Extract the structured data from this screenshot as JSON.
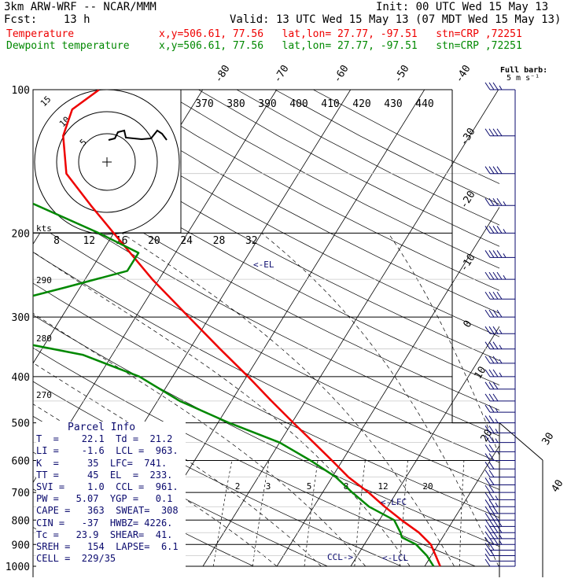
{
  "header": {
    "model": "3km ARW-WRF -- NCAR/MMM",
    "init": "Init: 00 UTC Wed 15 May 13",
    "fcst": "Fcst:    13 h",
    "valid": "Valid: 13 UTC Wed 15 May 13 (07 MDT Wed 15 May 13)",
    "temp_label": "Temperature",
    "temp_loc": "x,y=506.61, 77.56   lat,lon= 27.77, -97.51   stn=CRP ,72251",
    "dew_label": "Dewpoint temperature",
    "dew_loc": "x,y=506.61, 77.56   lat,lon= 27.77, -97.51   stn=CRP ,72251"
  },
  "colors": {
    "temperature": "#ee0000",
    "dewpoint": "#008800",
    "annot": "#0a0a6e",
    "grid": "#000000"
  },
  "barb_legend": {
    "line1": "Full barb:",
    "line2": "5 m s⁻¹"
  },
  "hodograph": {
    "rings": [
      "5",
      "10",
      "15"
    ],
    "units": "kts"
  },
  "parcel_info": {
    "title": "Parcel Info",
    "rows": [
      "T  =    22.1  Td =  21.2",
      "LI =    -1.6  LCL =  963.",
      "K  =     35  LFC=  741.",
      "TT =     45  EL  =  233.",
      "SVI =    1.0  CCL =  961.",
      "PW =   5.07  YGP =   0.1",
      "CAPE =   363  SWEAT=  308",
      "CIN =   -37  HWBZ= 4226.",
      "Tc =   23.9  SHEAR=  41.",
      "SREH =   154  LAPSE=  6.1",
      "CELL =  229/35"
    ]
  },
  "chart_data": {
    "type": "line",
    "title": "",
    "xlabel": "",
    "ylabel": "",
    "pressure_levels": [
      100,
      200,
      300,
      400,
      500,
      600,
      700,
      800,
      900,
      1000
    ],
    "theta_e_labels": [
      "370",
      "380",
      "390",
      "400",
      "410",
      "420",
      "430",
      "440"
    ],
    "mixing_ratio_labels": [
      "2",
      "3",
      "5",
      "8",
      "12",
      "20"
    ],
    "isotherm_labels": [
      "-80",
      "-70",
      "-60",
      "-50",
      "-40",
      "-30",
      "-20",
      "-10",
      "0",
      "10",
      "20",
      "30",
      "40"
    ],
    "temp_scale_labels": [
      "8",
      "12",
      "16",
      "20",
      "24",
      "28",
      "32"
    ],
    "dry_adiabat_labels": [
      "290",
      "280",
      "270"
    ],
    "level_markers": {
      "el": "<-EL",
      "lfc": "<-LFC",
      "lcl": "<-LCL",
      "ccl": "CCL->"
    },
    "series": [
      {
        "name": "Temperature",
        "color": "#ee0000",
        "points": [
          [
            1000,
            22.1
          ],
          [
            950,
            20.6
          ],
          [
            900,
            19.0
          ],
          [
            850,
            16.4
          ],
          [
            800,
            13.0
          ],
          [
            750,
            9.6
          ],
          [
            700,
            6.2
          ],
          [
            650,
            2.2
          ],
          [
            600,
            -1.4
          ],
          [
            550,
            -5.4
          ],
          [
            500,
            -9.8
          ],
          [
            450,
            -14.6
          ],
          [
            400,
            -19.8
          ],
          [
            350,
            -25.9
          ],
          [
            300,
            -32.8
          ],
          [
            250,
            -40.9
          ],
          [
            200,
            -50.0
          ],
          [
            175,
            -55.4
          ],
          [
            150,
            -61.4
          ],
          [
            125,
            -65.0
          ],
          [
            110,
            -66.0
          ],
          [
            100,
            -64.0
          ]
        ]
      },
      {
        "name": "Dewpoint temperature",
        "color": "#008800",
        "points": [
          [
            1000,
            21.2
          ],
          [
            950,
            19.4
          ],
          [
            900,
            17.0
          ],
          [
            870,
            14.5
          ],
          [
            850,
            13.9
          ],
          [
            800,
            12.0
          ],
          [
            750,
            7.5
          ],
          [
            700,
            4.0
          ],
          [
            650,
            0.5
          ],
          [
            600,
            -4.3
          ],
          [
            550,
            -10.0
          ],
          [
            500,
            -18.5
          ],
          [
            450,
            -27.0
          ],
          [
            400,
            -34.5
          ],
          [
            360,
            -44.0
          ],
          [
            330,
            -58.0
          ],
          [
            310,
            -69.0
          ],
          [
            290,
            -62.0
          ],
          [
            260,
            -52.0
          ],
          [
            240,
            -45.0
          ],
          [
            220,
            -45.0
          ],
          [
            200,
            -52.0
          ],
          [
            170,
            -65.0
          ],
          [
            140,
            -74.0
          ],
          [
            120,
            -77.0
          ],
          [
            100,
            -76.0
          ]
        ]
      }
    ],
    "wind_profile": [
      {
        "p": 1000,
        "spd": 10
      },
      {
        "p": 950,
        "spd": 20
      },
      {
        "p": 900,
        "spd": 35
      },
      {
        "p": 850,
        "spd": 40
      },
      {
        "p": 800,
        "spd": 30
      },
      {
        "p": 750,
        "spd": 25
      },
      {
        "p": 700,
        "spd": 20
      },
      {
        "p": 650,
        "spd": 20
      },
      {
        "p": 600,
        "spd": 20
      },
      {
        "p": 550,
        "spd": 25
      },
      {
        "p": 500,
        "spd": 25
      },
      {
        "p": 450,
        "spd": 30
      },
      {
        "p": 400,
        "spd": 35
      },
      {
        "p": 350,
        "spd": 35
      },
      {
        "p": 300,
        "spd": 40
      },
      {
        "p": 250,
        "spd": 45
      },
      {
        "p": 200,
        "spd": 45
      },
      {
        "p": 150,
        "spd": 40
      },
      {
        "p": 100,
        "spd": 35
      }
    ]
  }
}
